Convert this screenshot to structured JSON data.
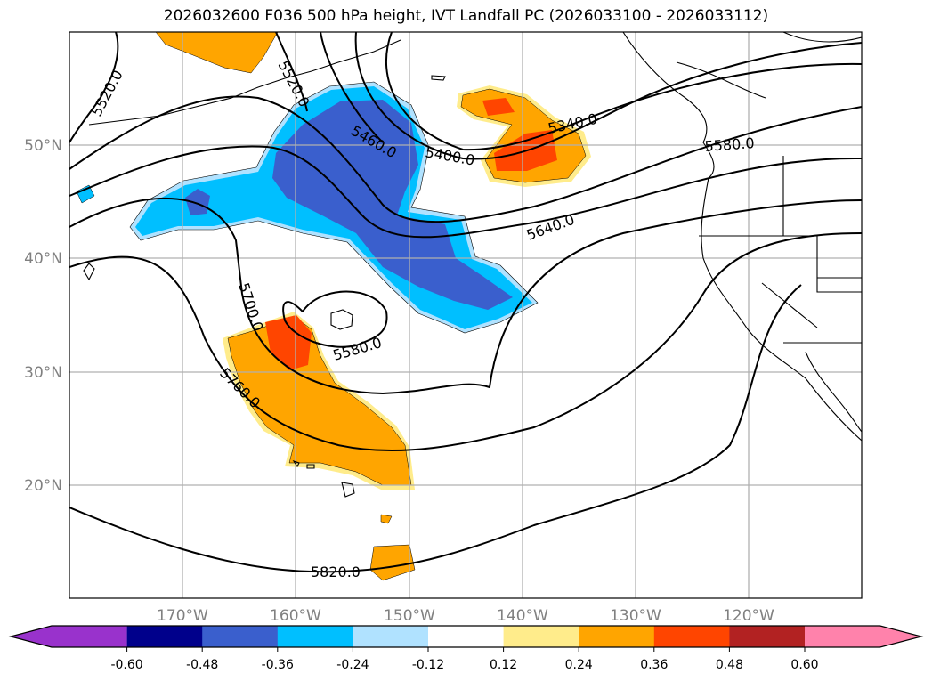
{
  "title": "2026032600 F036 500 hPa height, IVT Landfall PC (2026033100 - 2026033112)",
  "map": {
    "lat_labels": [
      "50°N",
      "40°N",
      "30°N",
      "20°N"
    ],
    "lon_labels": [
      "170°W",
      "160°W",
      "150°W",
      "140°W",
      "130°W",
      "120°W"
    ],
    "contour_labels": [
      "5520.0",
      "5520.0",
      "5460.0",
      "5400.0",
      "5340.0",
      "5580.0",
      "5640.0",
      "5700.0",
      "5580.0",
      "5760.0",
      "5820.0"
    ]
  },
  "colorbar": {
    "ticks": [
      "-0.60",
      "-0.48",
      "-0.36",
      "-0.24",
      "-0.12",
      "0.12",
      "0.24",
      "0.36",
      "0.48",
      "0.60"
    ],
    "colors": [
      "#9932cc",
      "#00008b",
      "#3a5fcd",
      "#00bfff",
      "#b0e2ff",
      "#ffffff",
      "#ffec8b",
      "#ffa500",
      "#ff4500",
      "#b22222",
      "#ff82ab"
    ]
  }
}
